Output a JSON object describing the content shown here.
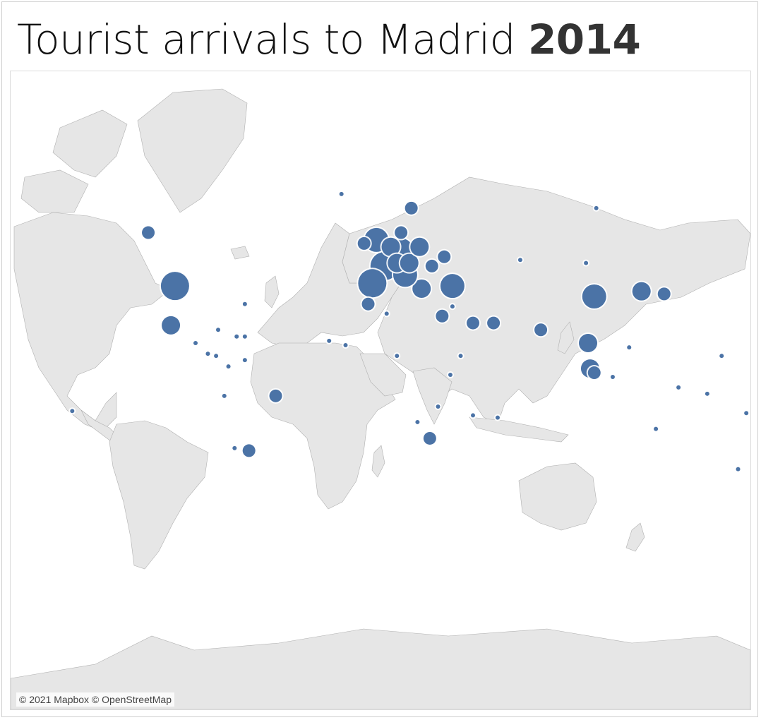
{
  "title": {
    "text": "Tourist arrivals to Madrid",
    "year": "2014"
  },
  "attribution": "© 2021 Mapbox © OpenStreetMap",
  "colors": {
    "land": "#e6e6e6",
    "water": "#ffffff",
    "borders": "#b0b0b0",
    "markers": "#4b73a6",
    "marker_halo": "#ffffff"
  },
  "map_data": {
    "type": "proportional-symbol-map",
    "region": "World",
    "markers": [
      {
        "lon": -100,
        "lat": 39,
        "size": "very-large"
      },
      {
        "lon": -102,
        "lat": 23,
        "size": "medium"
      },
      {
        "lon": -113,
        "lat": 56,
        "size": "small"
      },
      {
        "lon": 104,
        "lat": 35,
        "size": "large"
      },
      {
        "lon": 127,
        "lat": 37,
        "size": "medium"
      },
      {
        "lon": 138,
        "lat": 36,
        "size": "small"
      },
      {
        "lon": 101,
        "lat": 15,
        "size": "medium"
      },
      {
        "lon": 102,
        "lat": 3,
        "size": "medium"
      },
      {
        "lon": 104,
        "lat": 1,
        "size": "small"
      },
      {
        "lon": 78,
        "lat": 21,
        "size": "small"
      },
      {
        "lon": 45,
        "lat": 24,
        "size": "small"
      },
      {
        "lon": 55,
        "lat": 24,
        "size": "small"
      },
      {
        "lon": 35,
        "lat": 39,
        "size": "large"
      },
      {
        "lon": 20,
        "lat": 38,
        "size": "medium"
      },
      {
        "lon": 2,
        "lat": 46,
        "size": "very-large"
      },
      {
        "lon": -4,
        "lat": 40,
        "size": "very-large"
      },
      {
        "lon": 12,
        "lat": 43,
        "size": "large"
      },
      {
        "lon": 10,
        "lat": 51,
        "size": "large"
      },
      {
        "lon": -2,
        "lat": 54,
        "size": "large"
      },
      {
        "lon": -8,
        "lat": 53,
        "size": "small"
      },
      {
        "lon": 5,
        "lat": 52,
        "size": "medium"
      },
      {
        "lon": 8,
        "lat": 47,
        "size": "medium"
      },
      {
        "lon": 14,
        "lat": 47,
        "size": "medium"
      },
      {
        "lon": 19,
        "lat": 52,
        "size": "medium"
      },
      {
        "lon": 15,
        "lat": 62,
        "size": "small"
      },
      {
        "lon": 10,
        "lat": 56,
        "size": "small"
      },
      {
        "lon": 31,
        "lat": 49,
        "size": "small"
      },
      {
        "lon": 25,
        "lat": 46,
        "size": "small"
      },
      {
        "lon": -6,
        "lat": 32,
        "size": "small"
      },
      {
        "lon": 30,
        "lat": 27,
        "size": "small"
      },
      {
        "lon": 35,
        "lat": 31,
        "size": "tiny"
      },
      {
        "lon": 34,
        "lat": 0,
        "size": "tiny"
      },
      {
        "lon": 24,
        "lat": -29,
        "size": "small"
      },
      {
        "lon": -51,
        "lat": -10,
        "size": "small"
      },
      {
        "lon": -64,
        "lat": -34,
        "size": "small"
      },
      {
        "lon": -71,
        "lat": -33,
        "size": "tiny"
      },
      {
        "lon": -74,
        "lat": 4,
        "size": "tiny"
      },
      {
        "lon": -76,
        "lat": -10,
        "size": "tiny"
      },
      {
        "lon": -66,
        "lat": 7,
        "size": "tiny"
      },
      {
        "lon": -79,
        "lat": 21,
        "size": "tiny"
      },
      {
        "lon": -70,
        "lat": 18,
        "size": "tiny"
      },
      {
        "lon": -66,
        "lat": 18,
        "size": "tiny"
      },
      {
        "lon": -90,
        "lat": 15,
        "size": "tiny"
      },
      {
        "lon": -84,
        "lat": 10,
        "size": "tiny"
      },
      {
        "lon": -80,
        "lat": 9,
        "size": "tiny"
      },
      {
        "lon": 174,
        "lat": -41,
        "size": "tiny"
      },
      {
        "lon": 134,
        "lat": -25,
        "size": "tiny"
      },
      {
        "lon": 121,
        "lat": 13,
        "size": "tiny"
      },
      {
        "lon": 113,
        "lat": -1,
        "size": "tiny"
      },
      {
        "lon": 45,
        "lat": -19,
        "size": "tiny"
      },
      {
        "lon": 57,
        "lat": -20,
        "size": "tiny"
      },
      {
        "lon": 178,
        "lat": -18,
        "size": "tiny"
      },
      {
        "lon": 159,
        "lat": -9,
        "size": "tiny"
      },
      {
        "lon": 166,
        "lat": 9,
        "size": "tiny"
      },
      {
        "lon": -19,
        "lat": 65,
        "size": "tiny"
      },
      {
        "lon": 100,
        "lat": 47,
        "size": "tiny"
      },
      {
        "lon": 68,
        "lat": 48,
        "size": "tiny"
      },
      {
        "lon": 105,
        "lat": 62,
        "size": "tiny"
      },
      {
        "lon": -17,
        "lat": 14,
        "size": "tiny"
      },
      {
        "lon": 8,
        "lat": 9,
        "size": "tiny"
      },
      {
        "lon": 3,
        "lat": 28,
        "size": "tiny"
      },
      {
        "lon": 18,
        "lat": -22,
        "size": "tiny"
      },
      {
        "lon": 28,
        "lat": -15,
        "size": "tiny"
      },
      {
        "lon": 39,
        "lat": 9,
        "size": "tiny"
      },
      {
        "lon": -66,
        "lat": 32,
        "size": "tiny"
      },
      {
        "lon": -25,
        "lat": 16,
        "size": "tiny"
      },
      {
        "lon": 145,
        "lat": -6,
        "size": "tiny"
      },
      {
        "lon": -150,
        "lat": -17,
        "size": "tiny"
      }
    ]
  }
}
